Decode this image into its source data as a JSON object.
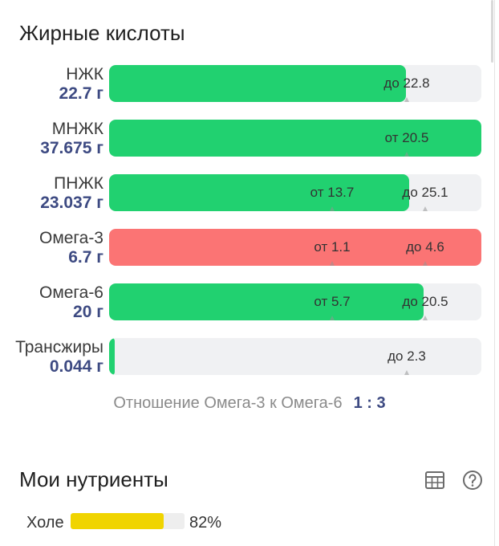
{
  "fat_section": {
    "title": "Жирные кислоты",
    "rows": [
      {
        "label": "НЖК",
        "amount": "22.7 г",
        "fill_fraction": 0.797,
        "fill_color": "green",
        "marks": [
          {
            "text": "до 22.8",
            "pos": 0.8
          }
        ]
      },
      {
        "label": "МНЖК",
        "amount": "37.675 г",
        "fill_fraction": 1.0,
        "fill_color": "green",
        "marks": [
          {
            "text": "от 20.5",
            "pos": 0.8
          }
        ]
      },
      {
        "label": "ПНЖК",
        "amount": "23.037 г",
        "fill_fraction": 0.806,
        "fill_color": "green",
        "marks": [
          {
            "text": "от 13.7",
            "pos": 0.6
          },
          {
            "text": "до 25.1",
            "pos": 0.85
          }
        ]
      },
      {
        "label": "Омега-3",
        "amount": "6.7 г",
        "fill_fraction": 1.0,
        "fill_color": "red",
        "marks": [
          {
            "text": "от 1.1",
            "pos": 0.6
          },
          {
            "text": "до 4.6",
            "pos": 0.85
          }
        ]
      },
      {
        "label": "Омега-6",
        "amount": "20 г",
        "fill_fraction": 0.845,
        "fill_color": "green",
        "marks": [
          {
            "text": "от 5.7",
            "pos": 0.6
          },
          {
            "text": "до 20.5",
            "pos": 0.85
          }
        ]
      },
      {
        "label": "Трансжиры",
        "amount": "0.044 г",
        "fill_fraction": 0.015,
        "fill_color": "green",
        "marks": [
          {
            "text": "до 2.3",
            "pos": 0.8
          }
        ]
      }
    ],
    "ratio": {
      "label": "Отношение Омега-3 к Омега-6",
      "value": "1 : 3"
    }
  },
  "nutrients": {
    "title": "Мои нутриенты",
    "icons": [
      "table-icon",
      "help-icon"
    ],
    "items": [
      {
        "label": "Холе",
        "percent": "82%",
        "fraction": 0.82,
        "color": "#f0d400"
      }
    ]
  },
  "colors": {
    "green": "#21d170",
    "red": "#fb7474",
    "track": "#f0f1f3",
    "amount": "#3d4a82"
  }
}
